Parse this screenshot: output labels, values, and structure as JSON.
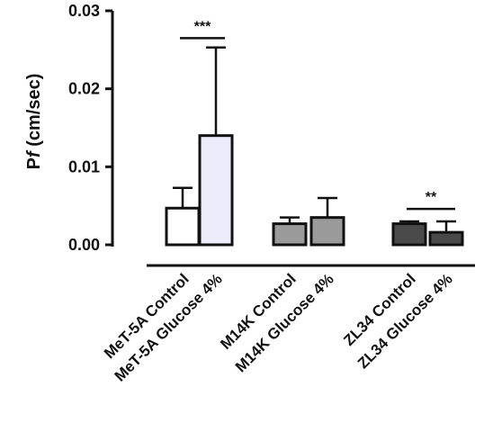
{
  "chart_data": {
    "type": "bar",
    "ylabel_main": "P",
    "ylabel_italic": "f",
    "ylabel_unit": " (cm/sec)",
    "ylim": [
      0,
      0.03
    ],
    "yticks": [
      0.0,
      0.01,
      0.02,
      0.03
    ],
    "ytick_labels": [
      "0.00",
      "0.01",
      "0.02",
      "0.03"
    ],
    "grid": false,
    "legend": "none",
    "categories": [
      "MeT-5A Control",
      "MeT-5A Glucose 4%",
      "M14K Control",
      "M14K Glucose 4%",
      "ZL34 Control",
      "ZL34 Glucose 4%"
    ],
    "values": [
      0.0047,
      0.014,
      0.0027,
      0.0035,
      0.0027,
      0.0016
    ],
    "errors": [
      0.0026,
      0.0113,
      0.0008,
      0.0025,
      0.0003,
      0.0014
    ],
    "colors": [
      "#ffffff",
      "#ececfb",
      "#9a9a9a",
      "#9a9a9a",
      "#4a4a4a",
      "#4a4a4a"
    ],
    "annotations": [
      {
        "text": "***",
        "from": 0,
        "to": 1,
        "y": 0.0265
      },
      {
        "text": "**",
        "from": 4,
        "to": 5,
        "y": 0.0046
      }
    ]
  }
}
